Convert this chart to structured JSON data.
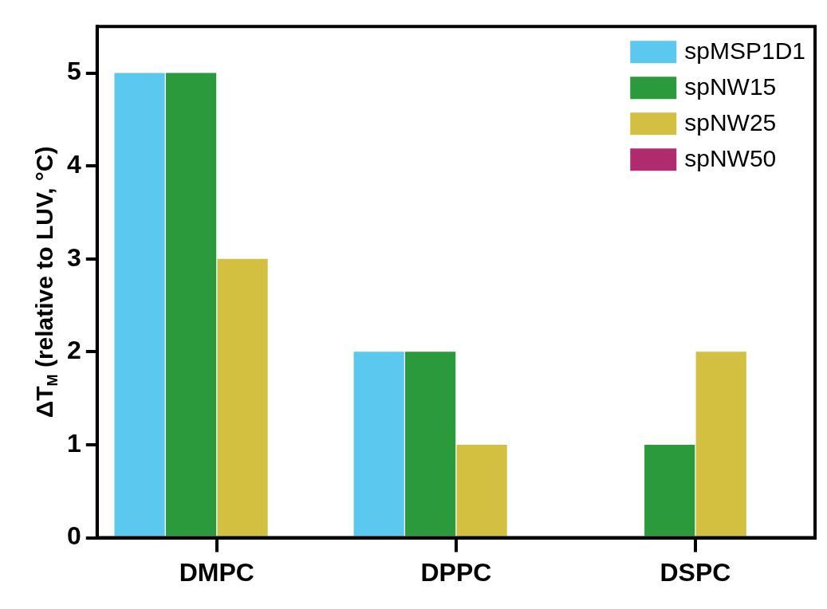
{
  "chart_data": {
    "type": "bar",
    "ylabel": "ΔT$_{M}$ (relative to LUV, °C)",
    "categories": [
      "DMPC",
      "DPPC",
      "DSPC"
    ],
    "series": [
      {
        "name": "spMSP1D1",
        "color": "#5bc8f0",
        "values": [
          5,
          2,
          0
        ]
      },
      {
        "name": "spNW15",
        "color": "#2a9a3c",
        "values": [
          5,
          2,
          1
        ]
      },
      {
        "name": "spNW25",
        "color": "#d4c040",
        "values": [
          3,
          1,
          2
        ]
      },
      {
        "name": "spNW50",
        "color": "#b02a6e",
        "values": [
          0,
          0,
          0
        ]
      }
    ],
    "ylim": [
      0,
      5.5
    ],
    "yticks": [
      0,
      1,
      2,
      3,
      4,
      5
    ],
    "grid": false,
    "legend": "top right"
  }
}
